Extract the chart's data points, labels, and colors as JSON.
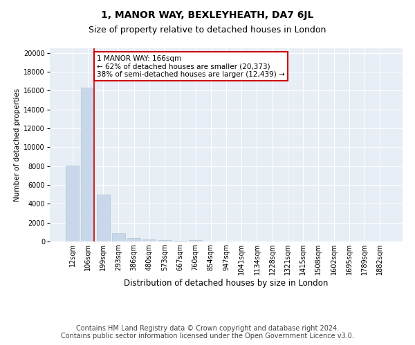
{
  "title": "1, MANOR WAY, BEXLEYHEATH, DA7 6JL",
  "subtitle": "Size of property relative to detached houses in London",
  "xlabel": "Distribution of detached houses by size in London",
  "ylabel": "Number of detached properties",
  "categories": [
    "12sqm",
    "106sqm",
    "199sqm",
    "293sqm",
    "386sqm",
    "480sqm",
    "573sqm",
    "667sqm",
    "760sqm",
    "854sqm",
    "947sqm",
    "1041sqm",
    "1134sqm",
    "1228sqm",
    "1321sqm",
    "1415sqm",
    "1508sqm",
    "1602sqm",
    "1695sqm",
    "1789sqm",
    "1882sqm"
  ],
  "values": [
    8050,
    16300,
    5000,
    900,
    380,
    200,
    130,
    100,
    110,
    0,
    0,
    0,
    0,
    0,
    0,
    0,
    0,
    0,
    0,
    0,
    0
  ],
  "bar_color": "#c8d8ea",
  "bar_edge_color": "#b0c4d8",
  "vline_color": "#cc0000",
  "annotation_text": "1 MANOR WAY: 166sqm\n← 62% of detached houses are smaller (20,373)\n38% of semi-detached houses are larger (12,439) →",
  "annotation_box_color": "#ffffff",
  "annotation_box_edge_color": "#cc0000",
  "ylim": [
    0,
    20500
  ],
  "yticks": [
    0,
    2000,
    4000,
    6000,
    8000,
    10000,
    12000,
    14000,
    16000,
    18000,
    20000
  ],
  "background_color": "#e8eef5",
  "footer_text": "Contains HM Land Registry data © Crown copyright and database right 2024.\nContains public sector information licensed under the Open Government Licence v3.0.",
  "title_fontsize": 10,
  "subtitle_fontsize": 9,
  "footer_fontsize": 7,
  "ylabel_fontsize": 7.5,
  "xlabel_fontsize": 8.5,
  "tick_fontsize": 7,
  "annotation_fontsize": 7.5
}
